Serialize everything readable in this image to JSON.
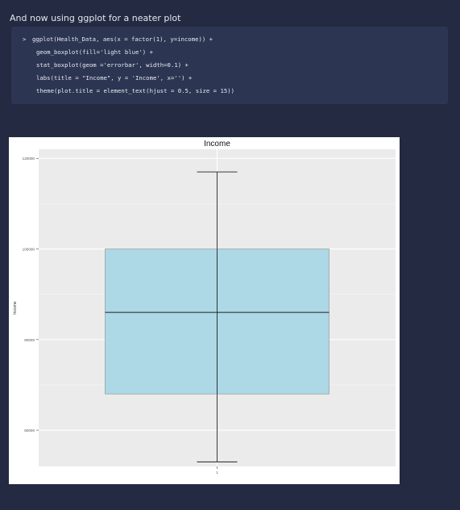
{
  "intro_text": "And now using ggplot for a neater plot",
  "code": {
    "prompt": ">",
    "lines": [
      "ggplot(Health_Data, aes(x = factor(1), y=income)) +",
      "geom_boxplot(fill='light blue') +",
      "stat_boxplot(geom ='errorbar', width=0.1) +",
      "labs(title = \"Income\", y = 'Income', x='') +",
      "theme(plot.title = element_text(hjust = 0.5, size = 15))"
    ]
  },
  "colors": {
    "page_background": "#232a42",
    "code_background": "#2c3551",
    "plot_panel": "#ebebeb",
    "box_fill": "#add8e6"
  },
  "chart_data": {
    "type": "box",
    "title": "Income",
    "xlabel": "",
    "ylabel": "Income",
    "categories": [
      "1"
    ],
    "ylim": [
      52000,
      122000
    ],
    "yticks": [
      60000,
      80000,
      100000,
      120000
    ],
    "box": {
      "whisker_low": 53000,
      "q1": 68000,
      "median": 86000,
      "q3": 100000,
      "whisker_high": 117000
    },
    "grid": true,
    "legend": "none"
  }
}
